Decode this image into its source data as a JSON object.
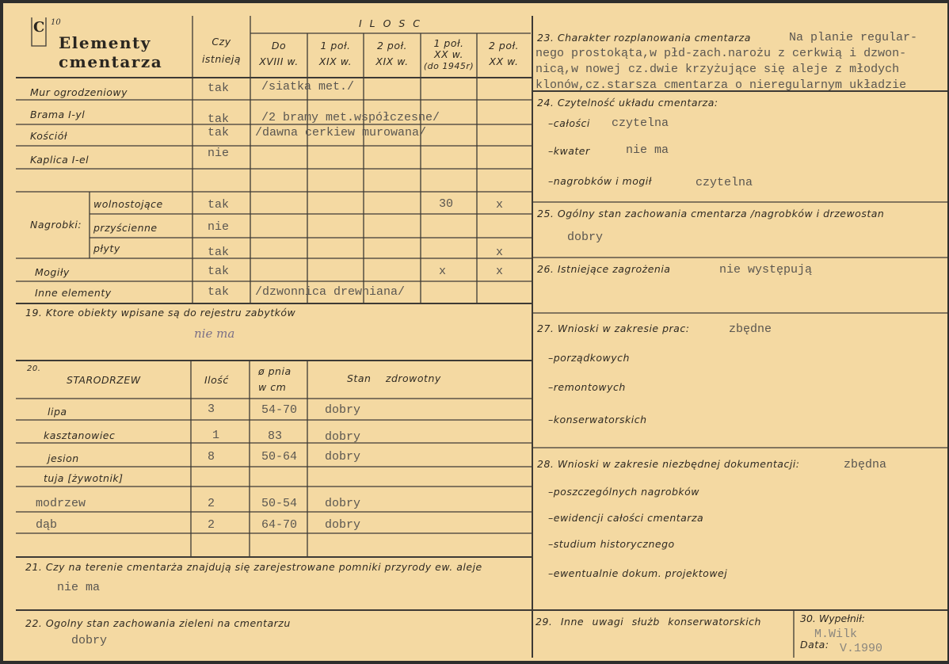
{
  "form": {
    "code": "C",
    "page": "10",
    "title_line1": "Elementy",
    "title_line2": "cmentarza"
  },
  "elements_table": {
    "exists_header": "Czy istnieją",
    "quantity_header": "I L O S C",
    "cols": [
      "Do XVIII w.",
      "1 poł. XIX w.",
      "2 poł. XIX w.",
      "1 poł. XX w. (do 1945r)",
      "2 poł. XX w."
    ],
    "cols_split": [
      [
        "Do",
        "XVIII w."
      ],
      [
        "1 poł.",
        "XIX w."
      ],
      [
        "2 poł.",
        "XIX w."
      ],
      [
        "1 poł.",
        "XX w.",
        "(do 1945r)"
      ],
      [
        "2 poł.",
        "XX w."
      ]
    ],
    "nagrobki_label": "Nagrobki:",
    "rows": [
      {
        "label": "Mur ogrodzeniowy",
        "exists": "tak",
        "note": "/siatka met./"
      },
      {
        "label": "Brama I-yl",
        "exists": "tak",
        "note": "/2 bramy met.współczesne/"
      },
      {
        "label": "Kościół",
        "exists": "tak",
        "note": "/dawna cerkiew murowana/"
      },
      {
        "label": "Kaplica I-el",
        "exists": "nie"
      },
      {
        "label": "wolnostojące",
        "exists": "tak",
        "xx1": "30",
        "xx2": "x"
      },
      {
        "label": "przyścienne",
        "exists": "nie"
      },
      {
        "label": "płyty",
        "exists": "tak",
        "xx2": "x"
      },
      {
        "label": "Mogiły",
        "exists": "tak",
        "xx1": "x",
        "xx2": "x"
      },
      {
        "label": "Inne elementy",
        "exists": "tak",
        "note": "/dzwonnica drewniana/"
      }
    ]
  },
  "s19": {
    "label": "19. Ktore obiekty wpisane są do rejestru zabytków",
    "value": "nie ma"
  },
  "s20": {
    "num": "20.",
    "header": "STARODRZEW",
    "qty_header": "Ilość",
    "diam_header_1": "ø pnia",
    "diam_header_2": "w cm",
    "health_header": "Stan zdrowotny",
    "rows": [
      {
        "name": "lipa",
        "qty": "3",
        "diam": "54-70",
        "health": "dobry"
      },
      {
        "name": "kasztanowiec",
        "qty": "1",
        "diam": "83",
        "health": "dobry"
      },
      {
        "name": "jesion",
        "qty": "8",
        "diam": "50-64",
        "health": "dobry"
      },
      {
        "name": "tuja [żywotnik]"
      },
      {
        "name": "modrzew",
        "qty": "2",
        "diam": "50-54",
        "health": "dobry"
      },
      {
        "name": "dąb",
        "qty": "2",
        "diam": "64-70",
        "health": "dobry"
      }
    ]
  },
  "s21": {
    "label": "21. Czy na terenie cmentarża znajdują się zarejestrowane pomniki przyrody ew. aleje",
    "value": "nie ma"
  },
  "s22": {
    "label": "22. Ogolny stan zachowania zieleni na cmentarzu",
    "value": "dobry"
  },
  "s23": {
    "label": "23. Charakter rozplanowania cmentarza",
    "lines": [
      "Na planie regular-",
      "nego prostokąta,w płd-zach.narożu z cerkwią i dzwon-",
      "nicą,w nowej cz.dwie krzyżujące się aleje z młodych",
      "klonów,cz.starsza cmentarza o nieregularnym układzie"
    ]
  },
  "s24": {
    "label": "24. Czytelność układu cmentarza:",
    "items": [
      {
        "label": "–całości",
        "value": "czytelna"
      },
      {
        "label": "–kwater",
        "value": "nie ma"
      },
      {
        "label": "–nagrobków i mogił",
        "value": "czytelna"
      }
    ]
  },
  "s25": {
    "label": "25. Ogólny stan zachowania cmentarza /nagrobków i drzewostan",
    "value": "dobry"
  },
  "s26": {
    "label": "26. Istniejące zagrożenia",
    "value": "nie występują"
  },
  "s27": {
    "label": "27. Wnioski w zakresie prac:",
    "value": "zbędne",
    "items": [
      "–porządkowych",
      "–remontowych",
      "–konserwatorskich"
    ]
  },
  "s28": {
    "label": "28. Wnioski w zakresie niezbędnej dokumentacji:",
    "value": "zbędna",
    "items": [
      "–poszczególnych nagrobków",
      "–ewidencji całości cmentarza",
      "–studium historycznego",
      "–ewentualnie dokum. projektowej"
    ]
  },
  "s29": {
    "label": "29. Inne uwagi służb konserwatorskich"
  },
  "s30": {
    "label": "30. Wypełnił:",
    "value": "M.Wilk",
    "date_label": "Data:",
    "date": "V.1990"
  }
}
